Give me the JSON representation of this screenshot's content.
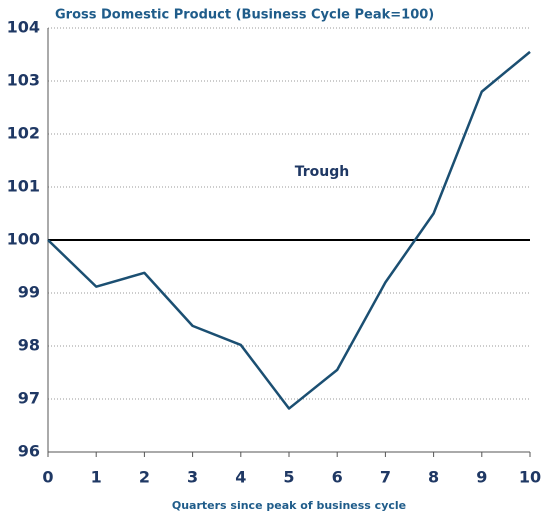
{
  "chart_data": {
    "type": "line",
    "title": "Gross Domestic Product (Business Cycle Peak=100)",
    "annotation": "Trough",
    "x_label": "Quarters since peak of business cycle",
    "x": [
      0,
      1,
      2,
      3,
      4,
      5,
      6,
      7,
      8,
      9,
      10
    ],
    "series": [
      {
        "name": "GDP",
        "color": "#1b4f72",
        "values": [
          100,
          99.12,
          99.38,
          98.38,
          98.02,
          96.82,
          97.55,
          99.2,
          100.5,
          102.8,
          103.55
        ]
      }
    ],
    "reference_line": 100,
    "xlim": [
      0,
      10
    ],
    "xticks": [
      0,
      1,
      2,
      3,
      4,
      5,
      6,
      7,
      8,
      9,
      10
    ],
    "ylim": [
      96,
      104
    ],
    "yticks": [
      96,
      97,
      98,
      99,
      100,
      101,
      102,
      103,
      104
    ],
    "grid": true
  }
}
